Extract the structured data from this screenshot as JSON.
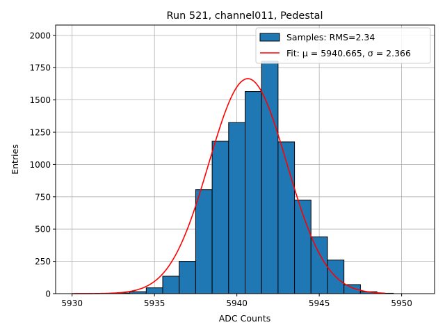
{
  "colors": {
    "bar_fill": "#1f77b4",
    "bar_edge": "#000000",
    "fit_line": "#ff0000",
    "grid": "#b0b0b0"
  },
  "chart_data": {
    "type": "bar",
    "title": "Run 521, channel011, Pedestal",
    "xlabel": "ADC Counts",
    "ylabel": "Entries",
    "xlim": [
      5929.0,
      5952.0
    ],
    "ylim": [
      0,
      2080
    ],
    "grid": true,
    "legend_position": "top-right",
    "xticks": [
      5930,
      5935,
      5940,
      5945,
      5950
    ],
    "xtick_labels": [
      "5930",
      "5935",
      "5940",
      "5945",
      "5950"
    ],
    "yticks": [
      0,
      250,
      500,
      750,
      1000,
      1250,
      1500,
      1750,
      2000
    ],
    "ytick_labels": [
      "0",
      "250",
      "500",
      "750",
      "1000",
      "1250",
      "1500",
      "1750",
      "2000"
    ],
    "histogram": {
      "name": "Samples: RMS=2.34",
      "bin_width": 1.0,
      "bin_starts": [
        5932.5,
        5933.5,
        5934.5,
        5935.5,
        5936.5,
        5937.5,
        5938.5,
        5939.5,
        5940.5,
        5941.5,
        5942.5,
        5943.5,
        5944.5,
        5945.5,
        5946.5,
        5947.5,
        5948.5
      ],
      "values": [
        5,
        15,
        45,
        135,
        250,
        805,
        1180,
        1325,
        1565,
        1800,
        1175,
        725,
        440,
        260,
        70,
        15,
        3
      ]
    },
    "fit": {
      "name": "Fit: μ = 5940.665, σ = 2.366",
      "type": "gaussian",
      "mu": 5940.665,
      "sigma": 2.366,
      "amplitude": 1665,
      "x_range": [
        5930.0,
        5949.0
      ]
    }
  }
}
